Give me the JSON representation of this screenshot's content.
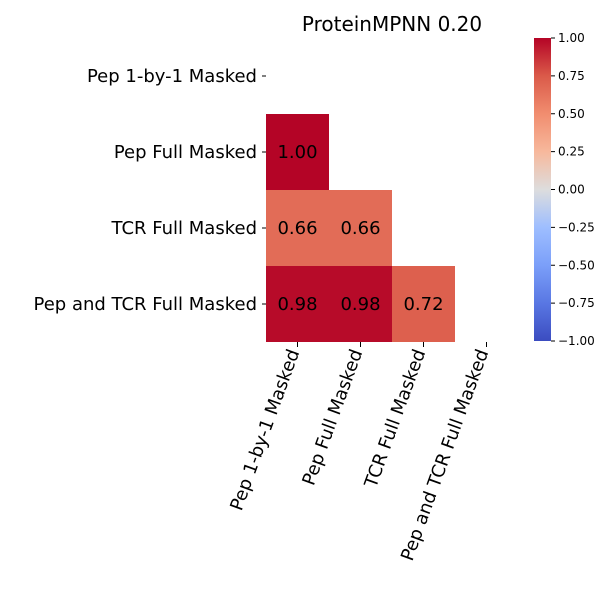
{
  "chart_data": {
    "type": "heatmap",
    "title": "ProteinMPNN 0.20",
    "row_labels": [
      "Pep 1-by-1 Masked",
      "Pep Full Masked",
      "TCR Full Masked",
      "Pep and TCR Full Masked"
    ],
    "col_labels": [
      "Pep 1-by-1 Masked",
      "Pep Full Masked",
      "TCR Full Masked",
      "Pep and TCR Full Masked"
    ],
    "matrix": [
      [
        null,
        null,
        null,
        null
      ],
      [
        1.0,
        null,
        null,
        null
      ],
      [
        0.66,
        0.66,
        null,
        null
      ],
      [
        0.98,
        0.98,
        0.72,
        null
      ]
    ],
    "value_format": "2 decimals",
    "masked": "upper triangle including diagonal",
    "colormap": "coolwarm",
    "vmin": -1.0,
    "vmax": 1.0,
    "colorbar_ticks": [
      "1.00",
      "0.75",
      "0.50",
      "0.25",
      "0.00",
      "−0.25",
      "−0.50",
      "−0.75",
      "−1.00"
    ],
    "colorbar_values": [
      1.0,
      0.75,
      0.5,
      0.25,
      0.0,
      -0.25,
      -0.5,
      -0.75,
      -1.0
    ]
  }
}
